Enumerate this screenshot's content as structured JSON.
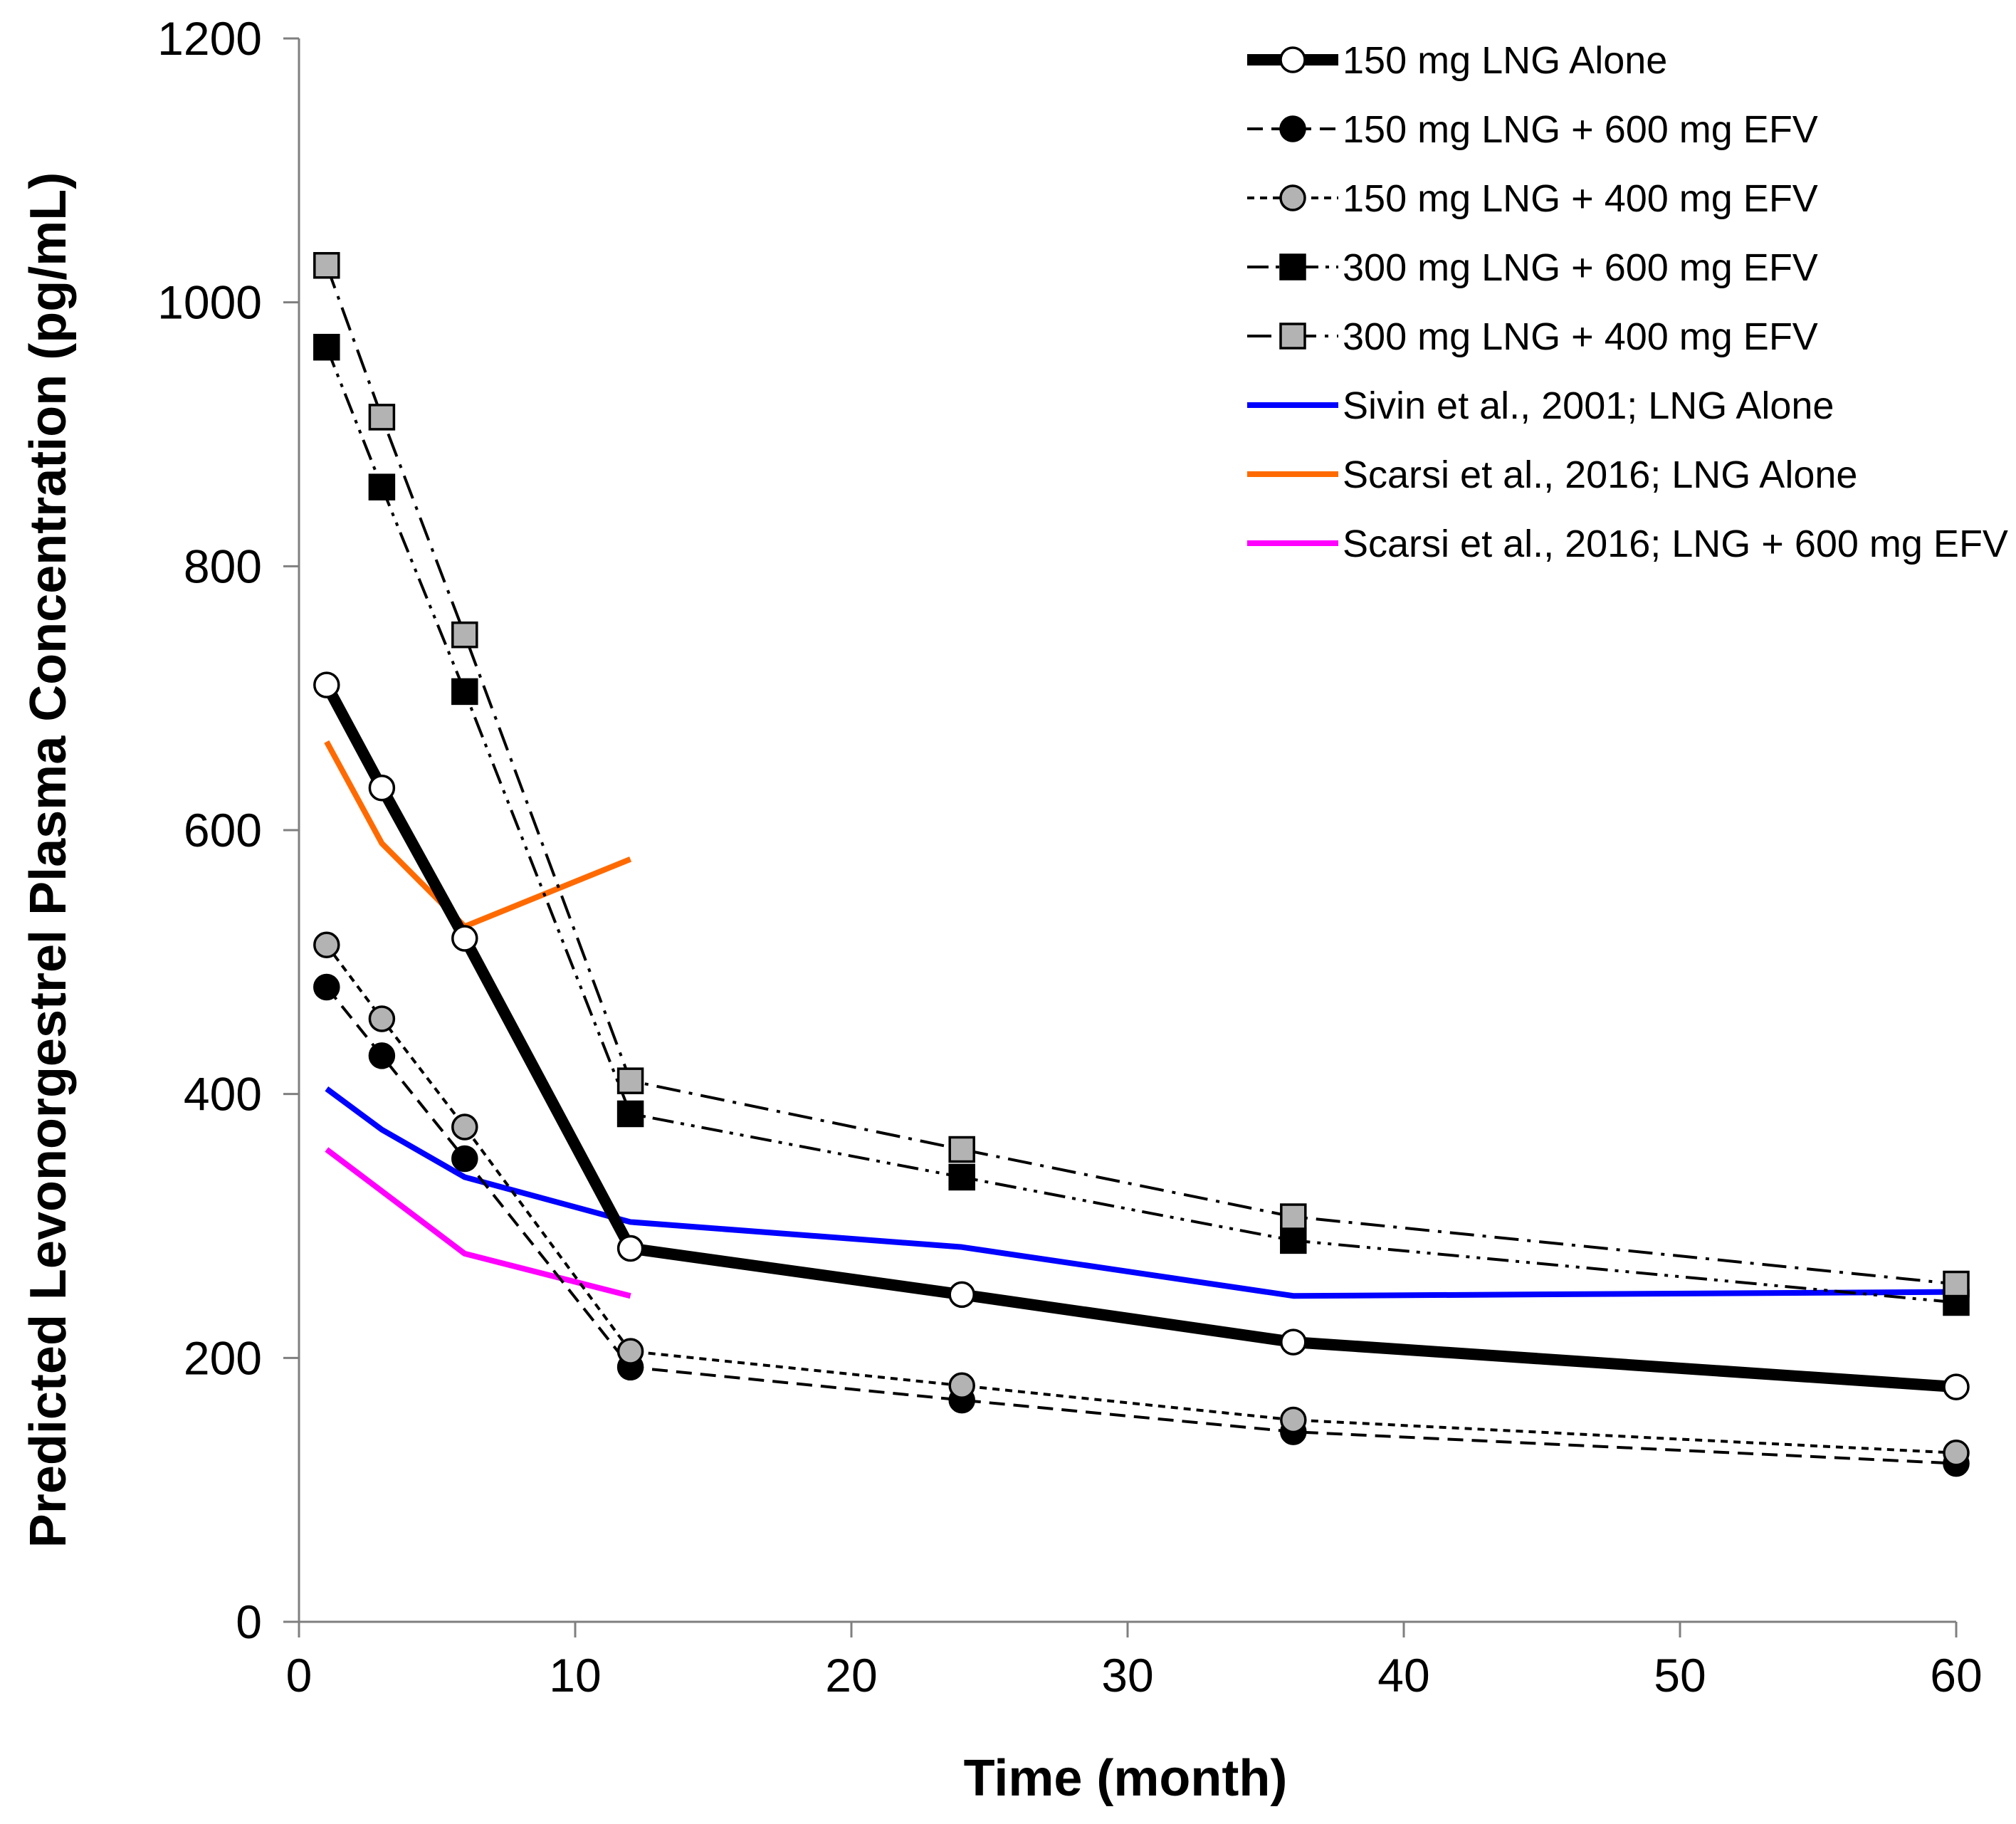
{
  "chart_data": {
    "type": "line",
    "title": "",
    "xlabel": "Time (month)",
    "ylabel": "Predicted Levonorgestrel Plasma Concentration (pg/mL)",
    "xlim": [
      0,
      60
    ],
    "ylim": [
      0,
      1200
    ],
    "xticks": [
      "0",
      "10",
      "20",
      "30",
      "40",
      "50",
      "60"
    ],
    "yticks": [
      "0",
      "200",
      "400",
      "600",
      "800",
      "1000",
      "1200"
    ],
    "grid": false,
    "legend_position": "top-right",
    "series": [
      {
        "name": "150 mg LNG Alone",
        "color": "#000000",
        "line": "solid-thick",
        "marker": "circle-open",
        "x": [
          1,
          3,
          6,
          12,
          24,
          36,
          60
        ],
        "y": [
          710,
          632,
          518,
          283,
          248,
          212,
          178
        ]
      },
      {
        "name": "150 mg LNG + 600 mg EFV",
        "color": "#000000",
        "line": "dashed",
        "marker": "circle-filled",
        "x": [
          1,
          3,
          6,
          12,
          24,
          36,
          60
        ],
        "y": [
          481,
          429,
          351,
          193,
          168,
          144,
          120
        ]
      },
      {
        "name": "150 mg LNG + 400 mg EFV",
        "color": "#000000",
        "line": "short-dashed",
        "marker": "circle-gray",
        "x": [
          1,
          3,
          6,
          12,
          24,
          36,
          60
        ],
        "y": [
          513,
          457,
          375,
          205,
          179,
          153,
          128
        ]
      },
      {
        "name": "300 mg LNG + 600 mg EFV",
        "color": "#000000",
        "line": "dash-dot-dot",
        "marker": "square-filled",
        "x": [
          1,
          3,
          6,
          12,
          24,
          36,
          60
        ],
        "y": [
          966,
          860,
          705,
          385,
          337,
          289,
          242
        ]
      },
      {
        "name": "300 mg LNG + 400 mg EFV",
        "color": "#000000",
        "line": "dash-dot",
        "marker": "square-gray",
        "x": [
          1,
          3,
          6,
          12,
          24,
          36,
          60
        ],
        "y": [
          1028,
          913,
          748,
          410,
          358,
          307,
          256
        ]
      },
      {
        "name": "Sivin et al., 2001; LNG Alone",
        "color": "#0000ff",
        "line": "solid",
        "marker": "none",
        "x": [
          1,
          3,
          6,
          12,
          24,
          36,
          60
        ],
        "y": [
          404,
          373,
          337,
          303,
          284,
          247,
          250
        ]
      },
      {
        "name": "Scarsi et al., 2016; LNG Alone",
        "color": "#ff6a00",
        "line": "solid",
        "marker": "none",
        "x": [
          1,
          3,
          6,
          12
        ],
        "y": [
          667,
          590,
          527,
          578
        ]
      },
      {
        "name": "Scarsi et al., 2016; LNG + 600 mg EFV",
        "color": "#ff00ff",
        "line": "solid",
        "marker": "none",
        "x": [
          1,
          6,
          12
        ],
        "y": [
          358,
          279,
          247
        ]
      }
    ]
  }
}
